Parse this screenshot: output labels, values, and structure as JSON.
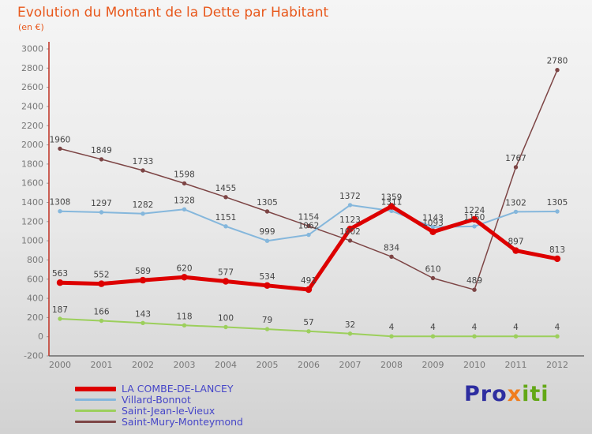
{
  "title": "Evolution du Montant de la Dette par Habitant",
  "subtitle": "(en €)",
  "chart_data": {
    "type": "line",
    "title": "Evolution du Montant de la Dette par Habitant",
    "unit": "en €",
    "categories": [
      "2000",
      "2001",
      "2002",
      "2003",
      "2004",
      "2005",
      "2006",
      "2007",
      "2008",
      "2009",
      "2010",
      "2011",
      "2012"
    ],
    "series": [
      {
        "name": "LA COMBE-DE-LANCEY",
        "color": "#dd0000",
        "width": 5,
        "values": [
          563,
          552,
          589,
          620,
          577,
          534,
          491,
          1123,
          1359,
          1093,
          1224,
          897,
          813
        ]
      },
      {
        "name": "Villard-Bonnot",
        "color": "#85b7dc",
        "width": 2,
        "values": [
          1308,
          1297,
          1282,
          1328,
          1151,
          999,
          1062,
          1372,
          1311,
          1143,
          1150,
          1302,
          1305
        ]
      },
      {
        "name": "Saint-Jean-le-Vieux",
        "color": "#9ccf5c",
        "width": 2,
        "values": [
          187,
          166,
          143,
          118,
          100,
          79,
          57,
          32,
          4,
          4,
          4,
          4,
          4
        ]
      },
      {
        "name": "Saint-Mury-Monteymond",
        "color": "#7d4545",
        "width": 1.5,
        "values": [
          1960,
          1849,
          1733,
          1598,
          1455,
          1305,
          1154,
          1002,
          834,
          610,
          489,
          1767,
          2780
        ]
      }
    ],
    "ylim": [
      -200,
      3000
    ],
    "ytick_step": 200,
    "grid": false,
    "legend_position": "bottom-left",
    "axis_colors": {
      "y_axis": "#c23b2e",
      "x_axis": "#555555"
    }
  },
  "logo": {
    "parts": [
      {
        "text": "Pro",
        "color": "#2d2da0"
      },
      {
        "text": "x",
        "color": "#f07d1e"
      },
      {
        "text": "iti",
        "color": "#63a816"
      }
    ]
  }
}
